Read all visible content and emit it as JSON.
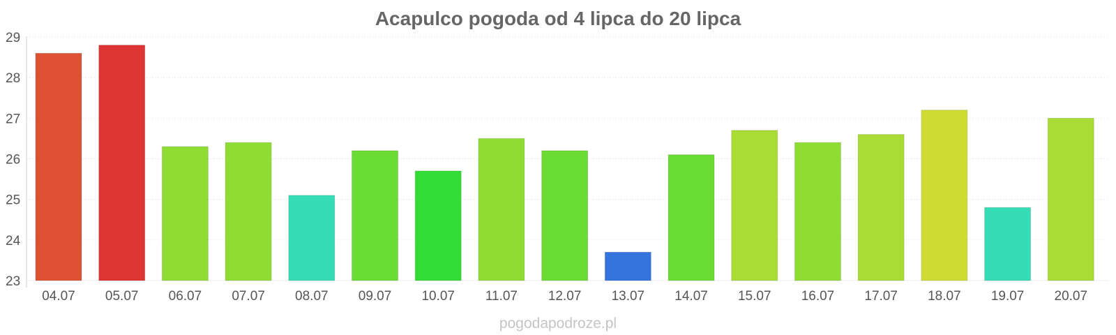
{
  "watermark": "pogodapodroze.pl",
  "chart_data": {
    "type": "bar",
    "title": "Acapulco pogoda od 4 lipca do 20 lipca",
    "xlabel": "",
    "ylabel": "",
    "categories": [
      "04.07",
      "05.07",
      "06.07",
      "07.07",
      "08.07",
      "09.07",
      "10.07",
      "11.07",
      "12.07",
      "13.07",
      "14.07",
      "15.07",
      "16.07",
      "17.07",
      "18.07",
      "19.07",
      "20.07"
    ],
    "values": [
      28.6,
      28.8,
      26.3,
      26.4,
      25.1,
      26.2,
      25.7,
      26.5,
      26.2,
      23.7,
      26.1,
      26.7,
      26.4,
      26.6,
      27.2,
      24.8,
      27.0
    ],
    "colors": [
      "#de5233",
      "#dd3434",
      "#8fdc34",
      "#8fdc34",
      "#35dcb6",
      "#6bdc34",
      "#33dc34",
      "#8fdc34",
      "#6bdc34",
      "#3474dc",
      "#6bdc34",
      "#a9dc34",
      "#8fdc34",
      "#a9dc34",
      "#cfdc34",
      "#35dcb6",
      "#a9dc34"
    ],
    "ylim": [
      23,
      29
    ],
    "yticks": [
      23,
      24,
      25,
      26,
      27,
      28,
      29
    ],
    "grid": true,
    "legend": "none"
  }
}
